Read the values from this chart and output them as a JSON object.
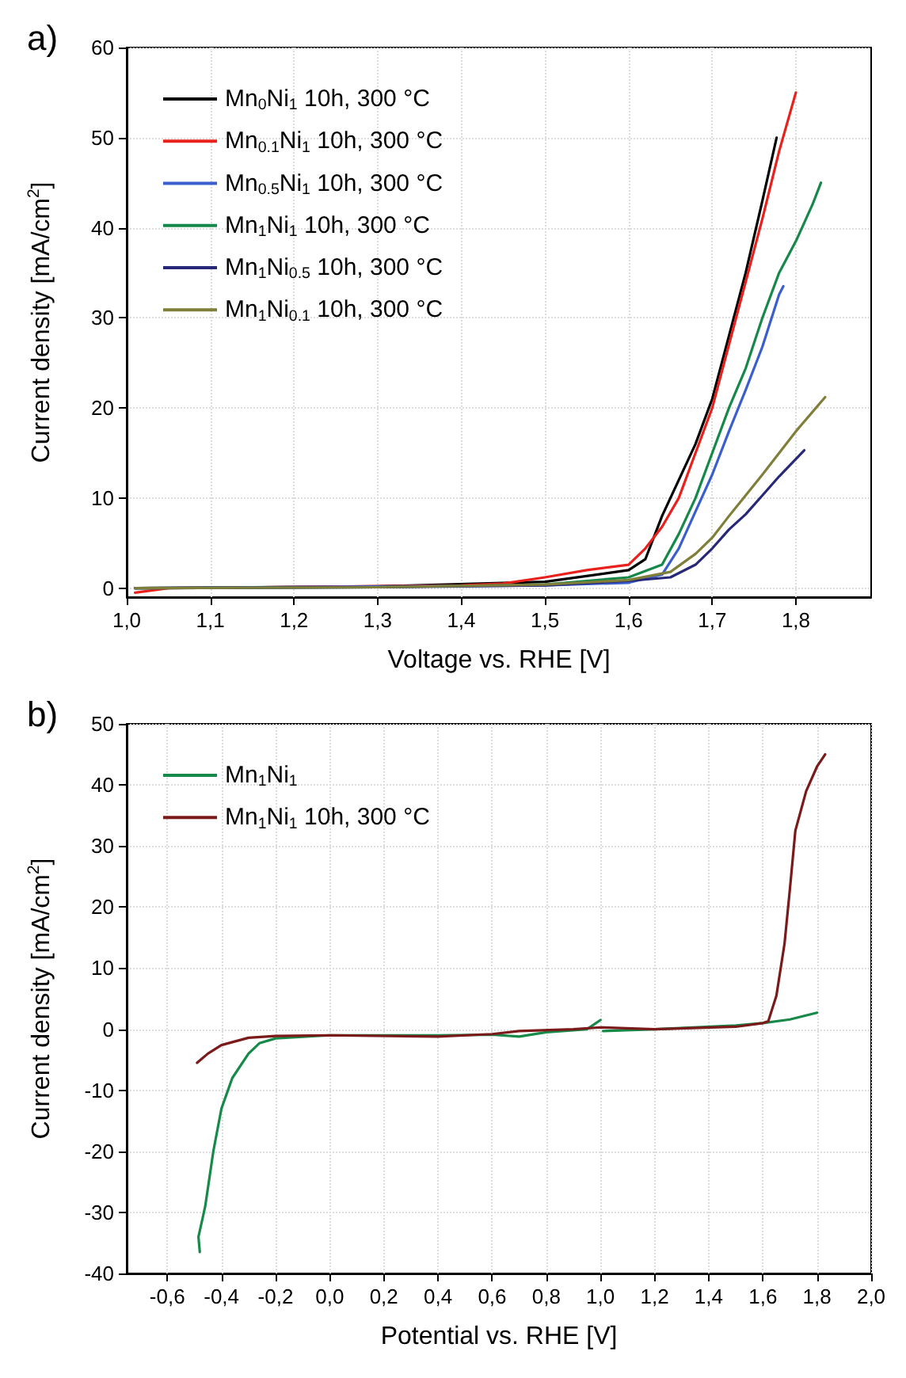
{
  "chart_data": [
    {
      "type": "line",
      "title": "a)",
      "xlabel": "Voltage vs. RHE [V]",
      "ylabel": "Current density [mA/cm$^{2}$]",
      "xlim": [
        1.0,
        1.89
      ],
      "ylim": [
        -1,
        60
      ],
      "xticks": [
        {
          "value": 1.0,
          "label": "1,0"
        },
        {
          "value": 1.1,
          "label": "1,1"
        },
        {
          "value": 1.2,
          "label": "1,2"
        },
        {
          "value": 1.3,
          "label": "1,3"
        },
        {
          "value": 1.4,
          "label": "1,4"
        },
        {
          "value": 1.5,
          "label": "1,5"
        },
        {
          "value": 1.6,
          "label": "1,6"
        },
        {
          "value": 1.7,
          "label": "1,7"
        },
        {
          "value": 1.8,
          "label": "1,8"
        }
      ],
      "yticks": [
        0,
        10,
        20,
        30,
        40,
        50,
        60
      ],
      "grid": true,
      "legend": "top left",
      "marker": "none",
      "line_style": "solid",
      "series": [
        {
          "name": "Mn$_{0}$Ni$_{1}$ 10h, 300 °C",
          "color": "#000000",
          "x": [
            1.01,
            1.3,
            1.5,
            1.6,
            1.62,
            1.64,
            1.66,
            1.68,
            1.7,
            1.72,
            1.74,
            1.76,
            1.777
          ],
          "values": [
            0,
            0.2,
            0.7,
            2,
            3.2,
            8,
            12,
            16,
            21,
            28,
            35,
            43,
            50
          ]
        },
        {
          "name": "Mn$_{0.1}$Ni$_{1}$ 10h, 300 °C",
          "color": "#e8211d",
          "x": [
            1.01,
            1.05,
            1.4,
            1.45,
            1.5,
            1.55,
            1.6,
            1.62,
            1.64,
            1.66,
            1.68,
            1.7,
            1.72,
            1.74,
            1.76,
            1.78,
            1.8
          ],
          "values": [
            -0.5,
            0,
            0.3,
            0.5,
            1.2,
            2,
            2.6,
            4.4,
            6.8,
            10,
            15,
            20,
            27,
            34,
            41,
            48.5,
            55
          ]
        },
        {
          "name": "Mn$_{0.5}$Ni$_{1}$ 10h, 300 °C",
          "color": "#3a5fcd",
          "x": [
            1.01,
            1.5,
            1.6,
            1.64,
            1.66,
            1.68,
            1.7,
            1.72,
            1.74,
            1.76,
            1.78,
            1.785
          ],
          "values": [
            0,
            0.3,
            0.6,
            1.5,
            4.4,
            8.5,
            12.6,
            17.4,
            22,
            26.8,
            32.6,
            33.5
          ]
        },
        {
          "name": "Mn$_{1}$Ni$_{1}$ 10h, 300 °C",
          "color": "#16894a",
          "x": [
            1.01,
            1.3,
            1.5,
            1.6,
            1.64,
            1.66,
            1.68,
            1.7,
            1.72,
            1.74,
            1.76,
            1.78,
            1.8,
            1.82,
            1.83
          ],
          "values": [
            0,
            0.1,
            0.4,
            1.2,
            2.6,
            6,
            10,
            15,
            20,
            24.4,
            30,
            35,
            38.5,
            42.6,
            45
          ]
        },
        {
          "name": "Mn$_{1}$Ni$_{0.5}$ 10h, 300 °C",
          "color": "#282878",
          "x": [
            1.01,
            1.3,
            1.5,
            1.6,
            1.65,
            1.68,
            1.7,
            1.72,
            1.74,
            1.76,
            1.78,
            1.81
          ],
          "values": [
            0,
            0.1,
            0.3,
            0.8,
            1.2,
            2.6,
            4.4,
            6.5,
            8.2,
            10.3,
            12.4,
            15.3
          ]
        },
        {
          "name": "Mn$_{1}$Ni$_{0.1}$ 10h, 300 °C",
          "color": "#7f7f3a",
          "x": [
            1.01,
            1.3,
            1.5,
            1.6,
            1.65,
            1.68,
            1.7,
            1.72,
            1.74,
            1.76,
            1.78,
            1.8,
            1.835
          ],
          "values": [
            0,
            0.1,
            0.4,
            0.9,
            1.8,
            3.8,
            5.6,
            8,
            10.3,
            12.6,
            15,
            17.4,
            21.2
          ]
        }
      ]
    },
    {
      "type": "line",
      "title": "b)",
      "xlabel": "Potential vs. RHE [V]",
      "ylabel": "Current density [mA/cm$^{2}$]",
      "xlim": [
        -0.75,
        2.0
      ],
      "ylim": [
        -40,
        50
      ],
      "xticks": [
        {
          "value": -0.6,
          "label": "-0,6"
        },
        {
          "value": -0.4,
          "label": "-0,4"
        },
        {
          "value": -0.2,
          "label": "-0,2"
        },
        {
          "value": 0,
          "label": "0,0"
        },
        {
          "value": 0.2,
          "label": "0,2"
        },
        {
          "value": 0.4,
          "label": "0,4"
        },
        {
          "value": 0.6,
          "label": "0,6"
        },
        {
          "value": 0.8,
          "label": "0,8"
        },
        {
          "value": 1.0,
          "label": "1,0"
        },
        {
          "value": 1.2,
          "label": "1,2"
        },
        {
          "value": 1.4,
          "label": "1,4"
        },
        {
          "value": 1.6,
          "label": "1,6"
        },
        {
          "value": 1.8,
          "label": "1,8"
        },
        {
          "value": 2.0,
          "label": "2,0"
        }
      ],
      "yticks": [
        -40,
        -30,
        -20,
        -10,
        0,
        10,
        20,
        30,
        40,
        50
      ],
      "grid": true,
      "legend": "top left",
      "marker": "none",
      "line_style": "solid",
      "series": [
        {
          "name": "Mn$_{1}$Ni$_{1}$",
          "color": "#178a4a",
          "x": [
            -0.48,
            -0.485,
            -0.46,
            -0.43,
            -0.4,
            -0.36,
            -0.3,
            -0.26,
            -0.2,
            0,
            0.4,
            0.6,
            0.7,
            0.8,
            0.95,
            1.0,
            1.005,
            1.01,
            1.2,
            1.5,
            1.6,
            1.7,
            1.8
          ],
          "values": [
            -36.5,
            -34,
            -29,
            -20,
            -13,
            -8,
            -4,
            -2.3,
            -1.5,
            -1,
            -1,
            -0.9,
            -1.2,
            -0.5,
            0,
            1.5,
            null,
            -0.3,
            0,
            0.6,
            1,
            1.6,
            2.7
          ]
        },
        {
          "name": "Mn$_{1}$Ni$_{1}$ 10h, 300 °C",
          "color": "#7b1a1a",
          "x": [
            -0.49,
            -0.45,
            -0.4,
            -0.3,
            -0.2,
            0,
            0.4,
            0.6,
            0.7,
            0.9,
            1.0,
            1.2,
            1.5,
            1.6,
            1.62,
            1.65,
            1.68,
            1.7,
            1.72,
            1.76,
            1.8,
            1.83
          ],
          "values": [
            -5.5,
            -4,
            -2.6,
            -1.4,
            -1.1,
            -1,
            -1.2,
            -0.8,
            -0.3,
            0,
            0.3,
            0,
            0.4,
            1,
            1.3,
            5.5,
            14,
            23,
            32.5,
            39,
            43,
            45
          ]
        }
      ]
    }
  ]
}
